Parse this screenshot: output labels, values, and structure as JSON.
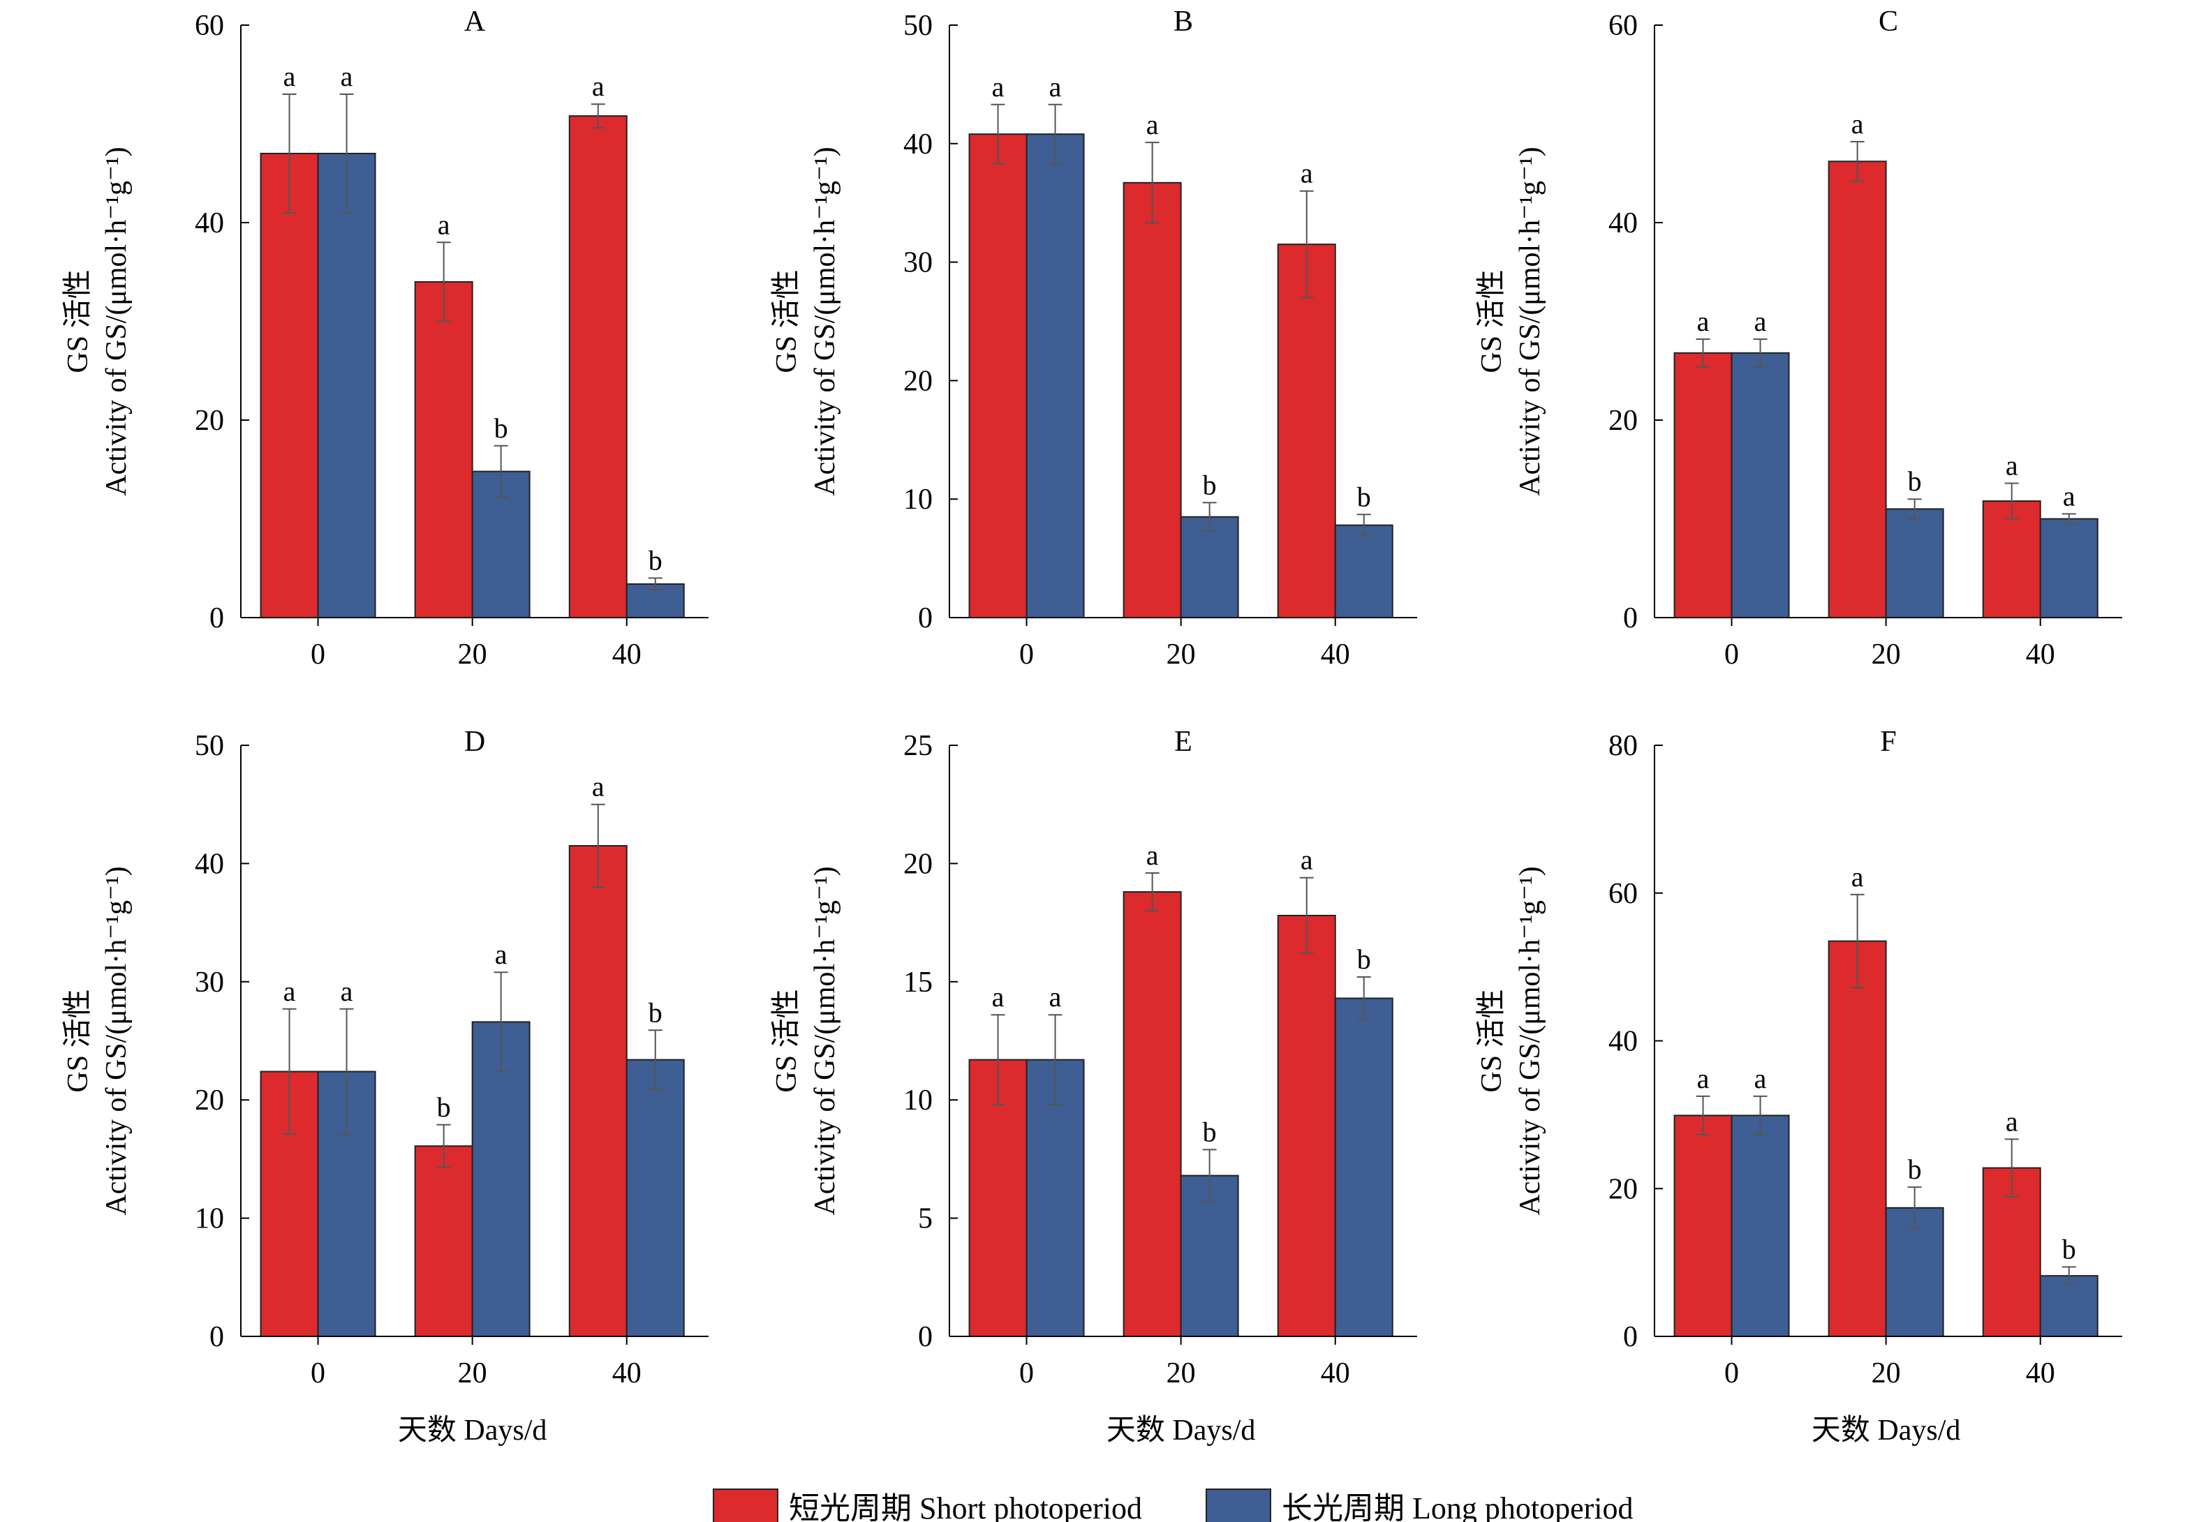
{
  "chart_data": [
    {
      "type": "bar",
      "title": "A",
      "categories": [
        "0",
        "20",
        "40"
      ],
      "ylim": [
        0,
        60
      ],
      "yticks": [
        0,
        20,
        40,
        60
      ],
      "ylabel_cn": "GS 活性",
      "ylabel_en": "Activity of GS/(μmol·h⁻¹g⁻¹)",
      "xlabel": "",
      "series": [
        {
          "name": "短光周期 Short photoperiod",
          "values": [
            47.0,
            34.0,
            50.8
          ],
          "errors": [
            6.0,
            4.0,
            1.2
          ],
          "sig": [
            "a",
            "a",
            "a"
          ]
        },
        {
          "name": "长光周期 Long photoperiod",
          "values": [
            47.0,
            14.8,
            3.4
          ],
          "errors": [
            6.0,
            2.6,
            0.6
          ],
          "sig": [
            "a",
            "b",
            "b"
          ]
        }
      ]
    },
    {
      "type": "bar",
      "title": "B",
      "categories": [
        "0",
        "20",
        "40"
      ],
      "ylim": [
        0,
        50
      ],
      "yticks": [
        0,
        10,
        20,
        30,
        40,
        50
      ],
      "ylabel_cn": "GS 活性",
      "ylabel_en": "Activity of GS/(μmol·h⁻¹g⁻¹)",
      "xlabel": "",
      "series": [
        {
          "name": "短光周期 Short photoperiod",
          "values": [
            40.8,
            36.7,
            31.5
          ],
          "errors": [
            2.5,
            3.4,
            4.5
          ],
          "sig": [
            "a",
            "a",
            "a"
          ]
        },
        {
          "name": "长光周期 Long photoperiod",
          "values": [
            40.8,
            8.5,
            7.8
          ],
          "errors": [
            2.5,
            1.2,
            0.9
          ],
          "sig": [
            "a",
            "b",
            "b"
          ]
        }
      ]
    },
    {
      "type": "bar",
      "title": "C",
      "categories": [
        "0",
        "20",
        "40"
      ],
      "ylim": [
        0,
        60
      ],
      "yticks": [
        0,
        20,
        40,
        60
      ],
      "ylabel_cn": "GS 活性",
      "ylabel_en": "Activity of GS/(μmol·h⁻¹g⁻¹)",
      "xlabel": "",
      "series": [
        {
          "name": "短光周期 Short photoperiod",
          "values": [
            26.8,
            46.2,
            11.8
          ],
          "errors": [
            1.4,
            2.0,
            1.8
          ],
          "sig": [
            "a",
            "a",
            "a"
          ]
        },
        {
          "name": "长光周期 Long photoperiod",
          "values": [
            26.8,
            11.0,
            10.0
          ],
          "errors": [
            1.4,
            1.0,
            0.5
          ],
          "sig": [
            "a",
            "b",
            "a"
          ]
        }
      ]
    },
    {
      "type": "bar",
      "title": "D",
      "categories": [
        "0",
        "20",
        "40"
      ],
      "ylim": [
        0,
        50
      ],
      "yticks": [
        0,
        10,
        20,
        30,
        40,
        50
      ],
      "ylabel_cn": "GS 活性",
      "ylabel_en": "Activity of GS/(μmol·h⁻¹g⁻¹)",
      "xlabel": "天数 Days/d",
      "series": [
        {
          "name": "短光周期 Short photoperiod",
          "values": [
            22.4,
            16.1,
            41.5
          ],
          "errors": [
            5.3,
            1.8,
            3.5
          ],
          "sig": [
            "a",
            "b",
            "a"
          ]
        },
        {
          "name": "长光周期 Long photoperiod",
          "values": [
            22.4,
            26.6,
            23.4
          ],
          "errors": [
            5.3,
            4.2,
            2.5
          ],
          "sig": [
            "a",
            "a",
            "b"
          ]
        }
      ]
    },
    {
      "type": "bar",
      "title": "E",
      "categories": [
        "0",
        "20",
        "40"
      ],
      "ylim": [
        0,
        25
      ],
      "yticks": [
        0,
        5,
        10,
        15,
        20,
        25
      ],
      "ylabel_cn": "GS 活性",
      "ylabel_en": "Activity of GS/(μmol·h⁻¹g⁻¹)",
      "xlabel": "天数 Days/d",
      "series": [
        {
          "name": "短光周期 Short photoperiod",
          "values": [
            11.7,
            18.8,
            17.8
          ],
          "errors": [
            1.9,
            0.8,
            1.6
          ],
          "sig": [
            "a",
            "a",
            "a"
          ]
        },
        {
          "name": "长光周期 Long photoperiod",
          "values": [
            11.7,
            6.8,
            14.3
          ],
          "errors": [
            1.9,
            1.1,
            0.9
          ],
          "sig": [
            "a",
            "b",
            "b"
          ]
        }
      ]
    },
    {
      "type": "bar",
      "title": "F",
      "categories": [
        "0",
        "20",
        "40"
      ],
      "ylim": [
        0,
        80
      ],
      "yticks": [
        0,
        20,
        40,
        60,
        80
      ],
      "ylabel_cn": "GS 活性",
      "ylabel_en": "Activity of GS/(μmol·h⁻¹g⁻¹)",
      "xlabel": "天数 Days/d",
      "series": [
        {
          "name": "短光周期 Short photoperiod",
          "values": [
            29.9,
            53.5,
            22.8
          ],
          "errors": [
            2.6,
            6.3,
            3.9
          ],
          "sig": [
            "a",
            "a",
            "a"
          ]
        },
        {
          "name": "长光周期 Long photoperiod",
          "values": [
            29.9,
            17.4,
            8.2
          ],
          "errors": [
            2.6,
            2.8,
            1.2
          ],
          "sig": [
            "a",
            "b",
            "b"
          ]
        }
      ]
    }
  ],
  "legend": {
    "placement": "bottom-center",
    "items": [
      {
        "label": "短光周期 Short photoperiod",
        "color": "#dd2a2d"
      },
      {
        "label": "长光周期 Long photoperiod",
        "color": "#3e5e94"
      }
    ]
  },
  "colors": {
    "short": "#dd2a2d",
    "long": "#3e5e94",
    "axis": "#000000",
    "errorbar": "#555555"
  }
}
